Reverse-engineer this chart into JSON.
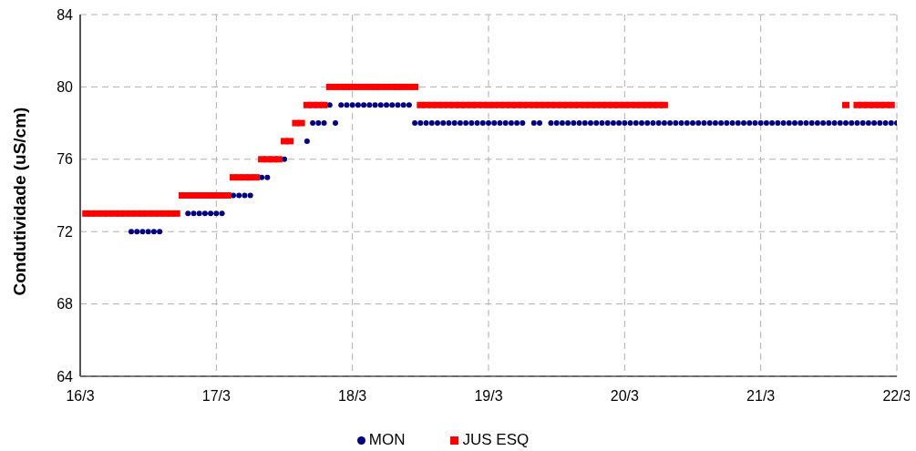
{
  "chart_data": {
    "type": "scatter",
    "ylabel": "Condutividade (uS/cm)",
    "xlim": [
      "--03-16",
      "--03-22"
    ],
    "xticks": [
      {
        "value": "--03-16",
        "label": "16/3"
      },
      {
        "value": "--03-17",
        "label": "17/3"
      },
      {
        "value": "--03-18",
        "label": "18/3"
      },
      {
        "value": "--03-19",
        "label": "19/3"
      },
      {
        "value": "--03-20",
        "label": "20/3"
      },
      {
        "value": "--03-21",
        "label": "21/3"
      },
      {
        "value": "--03-22",
        "label": "22/3"
      }
    ],
    "ylim": [
      64,
      84
    ],
    "yticks": [
      64,
      68,
      72,
      76,
      80,
      84
    ],
    "grid": true,
    "legend": "bottom",
    "series": [
      {
        "name": "MON",
        "color": "#000080",
        "marker": "circle",
        "x": [
          "--03-16T09:00",
          "--03-16T10:00",
          "--03-16T11:00",
          "--03-16T12:00",
          "--03-16T13:00",
          "--03-16T14:00",
          "--03-16T19:00",
          "--03-16T20:00",
          "--03-16T21:00",
          "--03-16T22:00",
          "--03-16T23:00",
          "--03-17T00:00",
          "--03-17T01:00",
          "--03-17T03:00",
          "--03-17T04:00",
          "--03-17T05:00",
          "--03-17T06:00",
          "--03-17T08:00",
          "--03-17T09:00",
          "--03-17T12:00",
          "--03-17T16:00",
          "--03-17T17:00",
          "--03-17T18:00",
          "--03-17T19:00",
          "--03-17T20:00",
          "--03-17T21:00",
          "--03-17T22:00",
          "--03-17T23:00",
          "--03-18T00:00",
          "--03-18T01:00",
          "--03-18T02:00",
          "--03-18T03:00",
          "--03-18T04:00",
          "--03-18T05:00",
          "--03-18T06:00",
          "--03-18T07:00",
          "--03-18T08:00",
          "--03-18T09:00",
          "--03-18T10:00",
          "--03-18T11:00",
          "--03-18T12:00",
          "--03-18T13:00",
          "--03-18T14:00",
          "--03-18T15:00",
          "--03-18T16:00",
          "--03-18T17:00",
          "--03-18T18:00",
          "--03-18T19:00",
          "--03-18T20:00",
          "--03-18T21:00",
          "--03-18T22:00",
          "--03-18T23:00",
          "--03-19T00:00",
          "--03-19T01:00",
          "--03-19T02:00",
          "--03-19T03:00",
          "--03-19T04:00",
          "--03-19T05:00",
          "--03-19T06:00",
          "--03-19T08:00",
          "--03-19T09:00",
          "--03-19T11:00",
          "--03-19T12:00",
          "--03-19T13:00",
          "--03-19T14:00",
          "--03-19T15:00",
          "--03-19T16:00",
          "--03-19T17:00",
          "--03-19T18:00",
          "--03-19T19:00",
          "--03-19T20:00",
          "--03-19T21:00",
          "--03-19T22:00",
          "--03-19T23:00",
          "--03-20T00:00",
          "--03-20T01:00",
          "--03-20T02:00",
          "--03-20T03:00",
          "--03-20T04:00",
          "--03-20T05:00",
          "--03-20T06:00",
          "--03-20T07:00",
          "--03-20T08:00",
          "--03-20T09:00",
          "--03-20T10:00",
          "--03-20T11:00",
          "--03-20T12:00",
          "--03-20T13:00",
          "--03-20T14:00",
          "--03-20T15:00",
          "--03-20T16:00",
          "--03-20T17:00",
          "--03-20T18:00",
          "--03-20T19:00",
          "--03-20T20:00",
          "--03-20T21:00",
          "--03-20T22:00",
          "--03-20T23:00",
          "--03-21T00:00",
          "--03-21T01:00",
          "--03-21T02:00",
          "--03-21T03:00",
          "--03-21T04:00",
          "--03-21T05:00",
          "--03-21T06:00",
          "--03-21T07:00",
          "--03-21T08:00",
          "--03-21T09:00",
          "--03-21T10:00",
          "--03-21T11:00",
          "--03-21T12:00",
          "--03-21T13:00",
          "--03-21T14:00",
          "--03-21T15:00",
          "--03-21T16:00",
          "--03-21T17:00",
          "--03-21T18:00",
          "--03-21T19:00",
          "--03-21T20:00",
          "--03-21T21:00",
          "--03-21T22:00",
          "--03-21T23:00",
          "--03-22T00:00"
        ],
        "values": [
          72,
          72,
          72,
          72,
          72,
          72,
          73,
          73,
          73,
          73,
          73,
          73,
          73,
          74,
          74,
          74,
          74,
          75,
          75,
          76,
          77,
          78,
          78,
          78,
          79,
          78,
          79,
          79,
          79,
          79,
          79,
          79,
          79,
          79,
          79,
          79,
          79,
          79,
          79,
          78,
          78,
          78,
          78,
          78,
          78,
          78,
          78,
          78,
          78,
          78,
          78,
          78,
          78,
          78,
          78,
          78,
          78,
          78,
          78,
          78,
          78,
          78,
          78,
          78,
          78,
          78,
          78,
          78,
          78,
          78,
          78,
          78,
          78,
          78,
          78,
          78,
          78,
          78,
          78,
          78,
          78,
          78,
          78,
          78,
          78,
          78,
          78,
          78,
          78,
          78,
          78,
          78,
          78,
          78,
          78,
          78,
          78,
          78,
          78,
          78,
          78,
          78,
          78,
          78,
          78,
          78,
          78,
          78,
          78,
          78,
          78,
          78,
          78,
          78,
          78,
          78,
          78,
          78,
          78,
          78,
          78,
          78,
          78
        ]
      },
      {
        "name": "JUS ESQ",
        "color": "#ff0000",
        "marker": "square",
        "x": [
          "--03-16T01:00",
          "--03-16T02:00",
          "--03-16T03:00",
          "--03-16T04:00",
          "--03-16T05:00",
          "--03-16T06:00",
          "--03-16T07:00",
          "--03-16T08:00",
          "--03-16T09:00",
          "--03-16T10:00",
          "--03-16T11:00",
          "--03-16T12:00",
          "--03-16T13:00",
          "--03-16T14:00",
          "--03-16T15:00",
          "--03-16T16:00",
          "--03-16T17:00",
          "--03-16T18:00",
          "--03-16T19:00",
          "--03-16T20:00",
          "--03-16T21:00",
          "--03-16T22:00",
          "--03-16T23:00",
          "--03-17T00:00",
          "--03-17T01:00",
          "--03-17T02:00",
          "--03-17T03:00",
          "--03-17T04:00",
          "--03-17T05:00",
          "--03-17T06:00",
          "--03-17T07:00",
          "--03-17T08:00",
          "--03-17T09:00",
          "--03-17T10:00",
          "--03-17T11:00",
          "--03-17T12:00",
          "--03-17T13:00",
          "--03-17T14:00",
          "--03-17T15:00",
          "--03-17T16:00",
          "--03-17T17:00",
          "--03-17T18:00",
          "--03-17T19:00",
          "--03-17T20:00",
          "--03-17T21:00",
          "--03-17T22:00",
          "--03-17T23:00",
          "--03-18T00:00",
          "--03-18T01:00",
          "--03-18T02:00",
          "--03-18T03:00",
          "--03-18T04:00",
          "--03-18T05:00",
          "--03-18T06:00",
          "--03-18T07:00",
          "--03-18T08:00",
          "--03-18T09:00",
          "--03-18T10:00",
          "--03-18T11:00",
          "--03-18T12:00",
          "--03-18T13:00",
          "--03-18T14:00",
          "--03-18T15:00",
          "--03-18T16:00",
          "--03-18T17:00",
          "--03-18T18:00",
          "--03-18T19:00",
          "--03-18T20:00",
          "--03-18T21:00",
          "--03-18T22:00",
          "--03-18T23:00",
          "--03-19T00:00",
          "--03-19T01:00",
          "--03-19T02:00",
          "--03-19T03:00",
          "--03-19T04:00",
          "--03-19T05:00",
          "--03-19T06:00",
          "--03-19T07:00",
          "--03-19T08:00",
          "--03-19T09:00",
          "--03-19T10:00",
          "--03-19T11:00",
          "--03-19T12:00",
          "--03-19T13:00",
          "--03-19T14:00",
          "--03-19T15:00",
          "--03-19T16:00",
          "--03-19T17:00",
          "--03-19T18:00",
          "--03-19T19:00",
          "--03-19T20:00",
          "--03-19T21:00",
          "--03-19T22:00",
          "--03-19T23:00",
          "--03-20T00:00",
          "--03-20T01:00",
          "--03-20T02:00",
          "--03-20T03:00",
          "--03-20T04:00",
          "--03-20T05:00",
          "--03-20T06:00",
          "--03-20T07:00",
          "--03-21T15:00",
          "--03-21T17:00",
          "--03-21T18:00",
          "--03-21T19:00",
          "--03-21T20:00",
          "--03-21T21:00",
          "--03-21T22:00",
          "--03-21T23:00"
        ],
        "values": [
          73,
          73,
          73,
          73,
          73,
          73,
          73,
          73,
          73,
          73,
          73,
          73,
          73,
          73,
          73,
          73,
          73,
          74,
          74,
          74,
          74,
          74,
          74,
          74,
          74,
          74,
          75,
          75,
          75,
          75,
          75,
          76,
          76,
          76,
          76,
          77,
          77,
          78,
          78,
          79,
          79,
          79,
          79,
          80,
          80,
          80,
          80,
          80,
          80,
          80,
          80,
          80,
          80,
          80,
          80,
          80,
          80,
          80,
          80,
          79,
          79,
          79,
          79,
          79,
          79,
          79,
          79,
          79,
          79,
          79,
          79,
          79,
          79,
          79,
          79,
          79,
          79,
          79,
          79,
          79,
          79,
          79,
          79,
          79,
          79,
          79,
          79,
          79,
          79,
          79,
          79,
          79,
          79,
          79,
          79,
          79,
          79,
          79,
          79,
          79,
          79,
          79,
          79,
          79,
          79,
          79,
          79,
          79,
          79,
          79,
          79
        ]
      }
    ]
  }
}
